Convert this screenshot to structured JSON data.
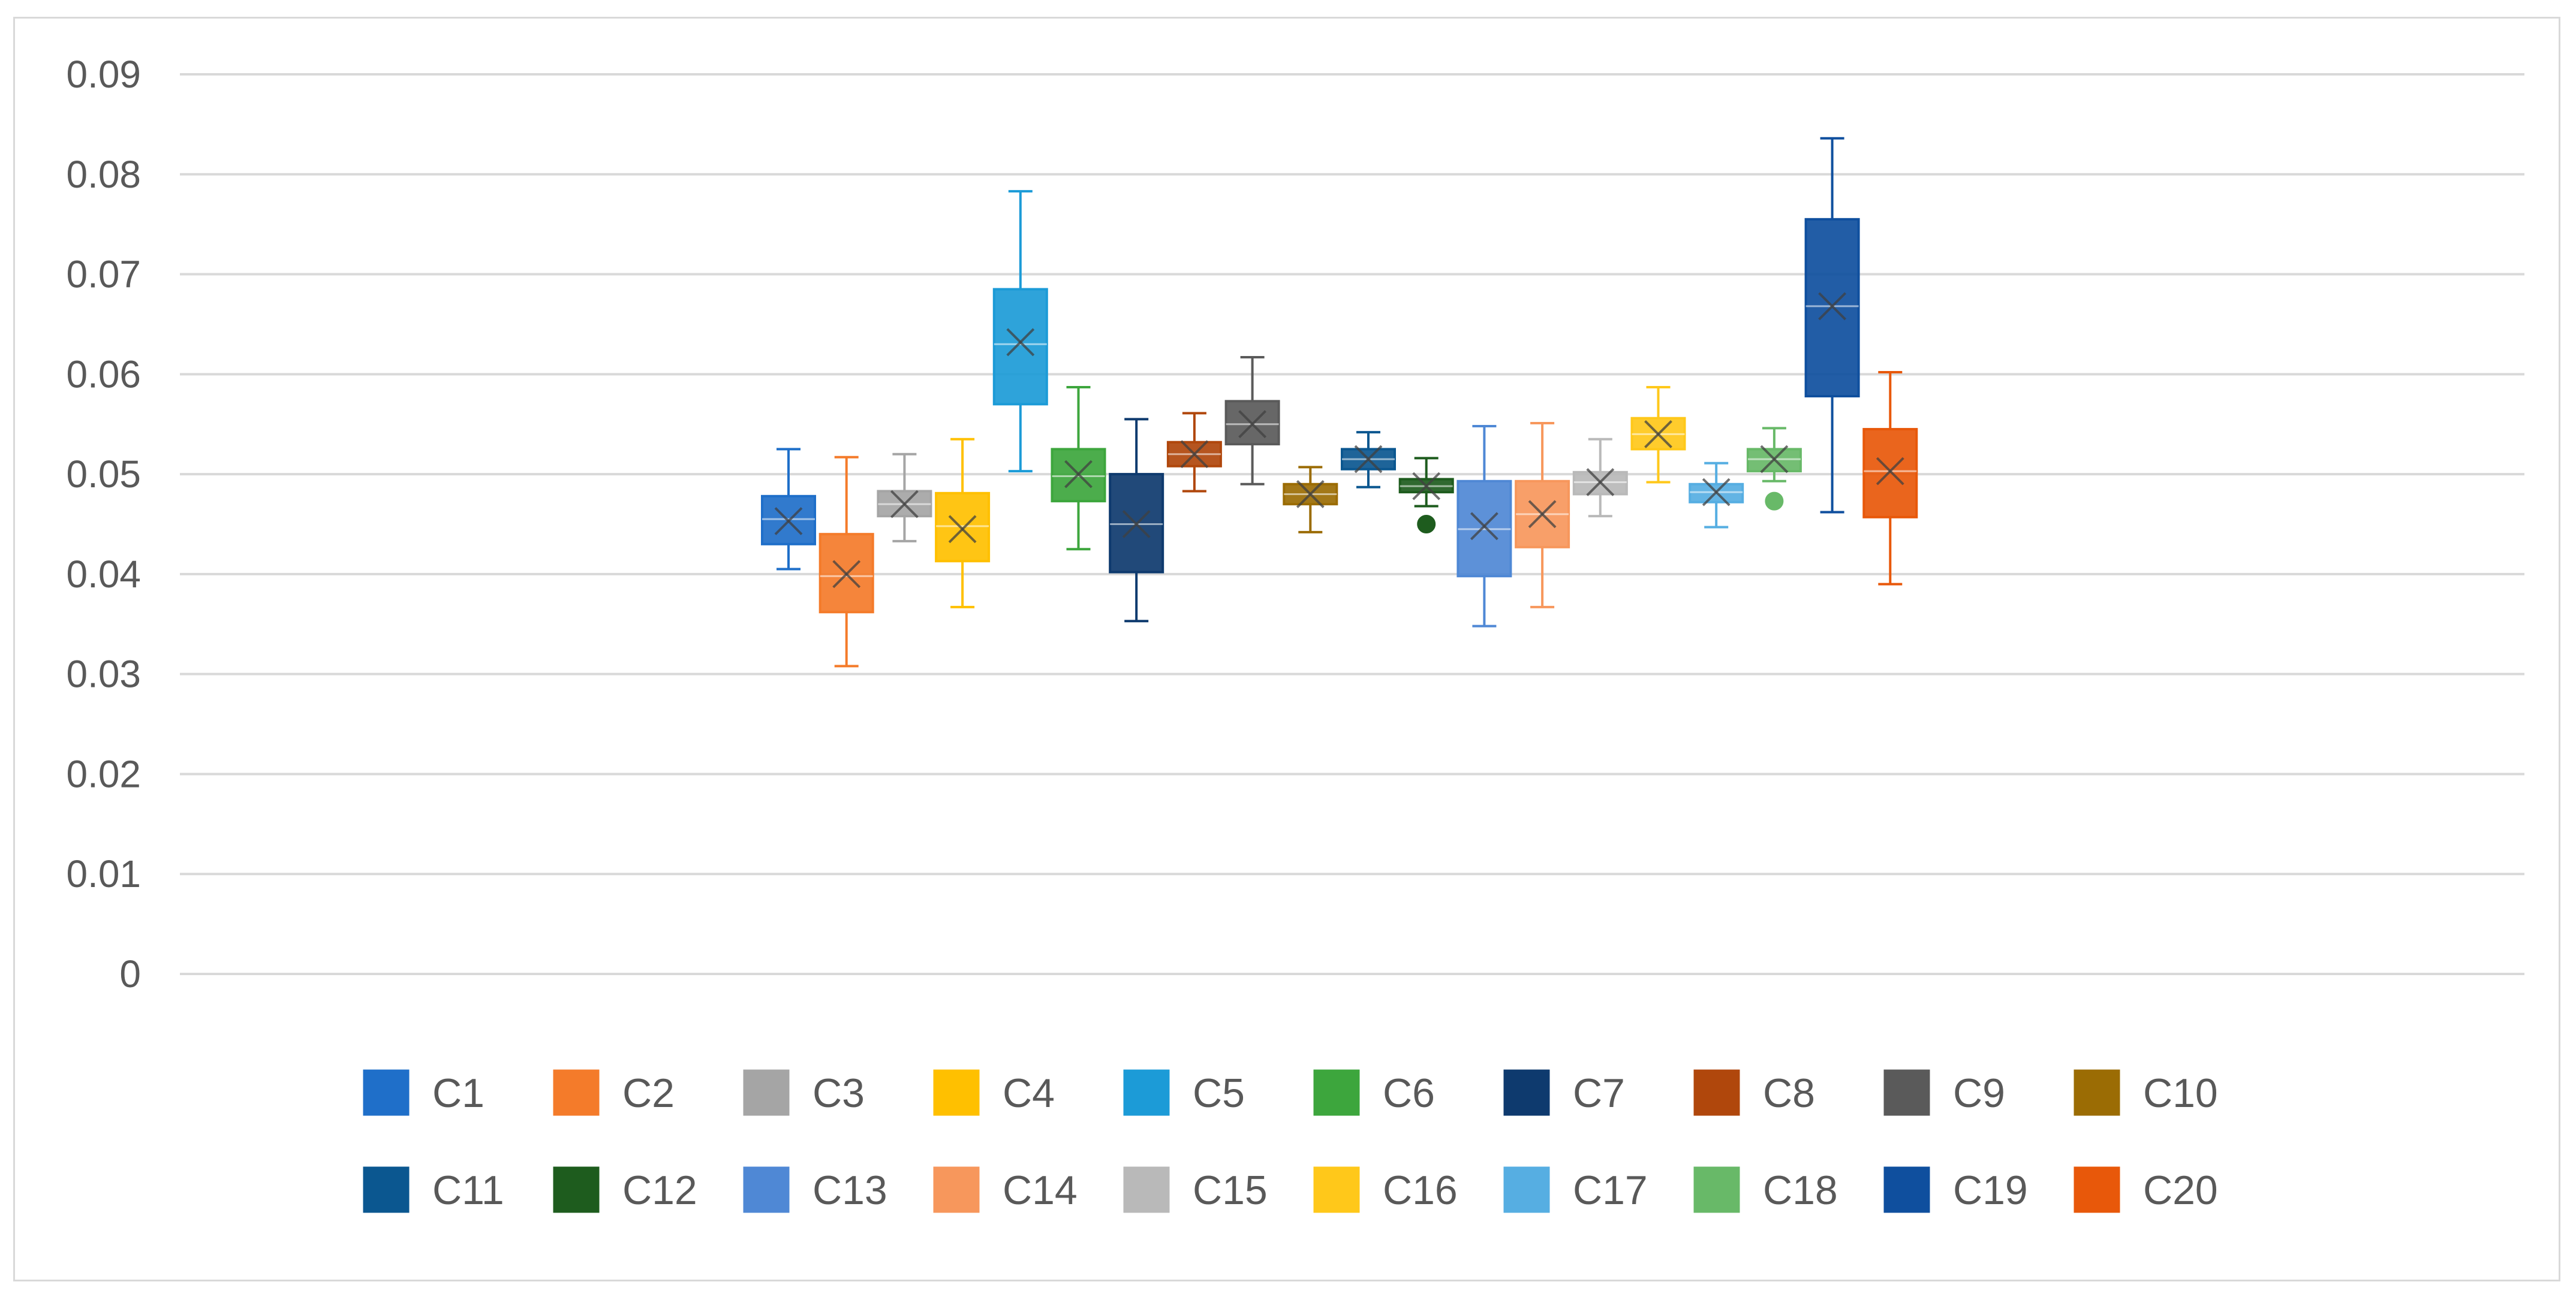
{
  "chart_data": {
    "type": "box",
    "title": "",
    "xlabel": "",
    "ylabel": "",
    "ylim": [
      0,
      0.09
    ],
    "y_ticks": [
      "0",
      "0.01",
      "0.02",
      "0.03",
      "0.04",
      "0.05",
      "0.06",
      "0.07",
      "0.08",
      "0.09"
    ],
    "grid": true,
    "legend_position": "bottom",
    "series": [
      {
        "name": "C1",
        "color": "#1f6fc9",
        "min": 0.0405,
        "q1": 0.043,
        "median": 0.0455,
        "mean": 0.0453,
        "q3": 0.0478,
        "max": 0.0525,
        "outliers": []
      },
      {
        "name": "C2",
        "color": "#f47b2a",
        "min": 0.0308,
        "q1": 0.0362,
        "median": 0.0398,
        "mean": 0.04,
        "q3": 0.044,
        "max": 0.0517,
        "outliers": []
      },
      {
        "name": "C3",
        "color": "#a5a5a5",
        "min": 0.0433,
        "q1": 0.0458,
        "median": 0.047,
        "mean": 0.047,
        "q3": 0.0483,
        "max": 0.052,
        "outliers": []
      },
      {
        "name": "C4",
        "color": "#ffc000",
        "min": 0.0367,
        "q1": 0.0413,
        "median": 0.0448,
        "mean": 0.0445,
        "q3": 0.0481,
        "max": 0.0535,
        "outliers": []
      },
      {
        "name": "C5",
        "color": "#1c9bd7",
        "min": 0.0503,
        "q1": 0.057,
        "median": 0.063,
        "mean": 0.0632,
        "q3": 0.0685,
        "max": 0.0783,
        "outliers": []
      },
      {
        "name": "C6",
        "color": "#3da63d",
        "min": 0.0425,
        "q1": 0.0473,
        "median": 0.0498,
        "mean": 0.05,
        "q3": 0.0525,
        "max": 0.0587,
        "outliers": []
      },
      {
        "name": "C7",
        "color": "#0e3a6e",
        "min": 0.0353,
        "q1": 0.0402,
        "median": 0.045,
        "mean": 0.045,
        "q3": 0.05,
        "max": 0.0555,
        "outliers": []
      },
      {
        "name": "C8",
        "color": "#b0470c",
        "min": 0.0483,
        "q1": 0.0508,
        "median": 0.052,
        "mean": 0.052,
        "q3": 0.0532,
        "max": 0.0561,
        "outliers": []
      },
      {
        "name": "C9",
        "color": "#5a5a5a",
        "min": 0.049,
        "q1": 0.053,
        "median": 0.055,
        "mean": 0.055,
        "q3": 0.0573,
        "max": 0.0617,
        "outliers": []
      },
      {
        "name": "C10",
        "color": "#9b6c04",
        "min": 0.0442,
        "q1": 0.047,
        "median": 0.048,
        "mean": 0.048,
        "q3": 0.049,
        "max": 0.0507,
        "outliers": []
      },
      {
        "name": "C11",
        "color": "#0b5790",
        "min": 0.0487,
        "q1": 0.0505,
        "median": 0.0515,
        "mean": 0.0515,
        "q3": 0.0525,
        "max": 0.0542,
        "outliers": []
      },
      {
        "name": "C12",
        "color": "#1e5c1e",
        "min": 0.0468,
        "q1": 0.0482,
        "median": 0.0488,
        "mean": 0.0488,
        "q3": 0.0495,
        "max": 0.0516,
        "outliers": [
          0.045
        ]
      },
      {
        "name": "C13",
        "color": "#4f88d5",
        "min": 0.0348,
        "q1": 0.0398,
        "median": 0.0445,
        "mean": 0.0448,
        "q3": 0.0493,
        "max": 0.0548,
        "outliers": []
      },
      {
        "name": "C14",
        "color": "#f7975c",
        "min": 0.0367,
        "q1": 0.0427,
        "median": 0.046,
        "mean": 0.046,
        "q3": 0.0493,
        "max": 0.0551,
        "outliers": []
      },
      {
        "name": "C15",
        "color": "#b9b9b9",
        "min": 0.0458,
        "q1": 0.048,
        "median": 0.0492,
        "mean": 0.0492,
        "q3": 0.0502,
        "max": 0.0535,
        "outliers": []
      },
      {
        "name": "C16",
        "color": "#ffc81a",
        "min": 0.0492,
        "q1": 0.0525,
        "median": 0.054,
        "mean": 0.054,
        "q3": 0.0556,
        "max": 0.0587,
        "outliers": []
      },
      {
        "name": "C17",
        "color": "#56aee2",
        "min": 0.0447,
        "q1": 0.0472,
        "median": 0.0482,
        "mean": 0.0482,
        "q3": 0.049,
        "max": 0.0511,
        "outliers": []
      },
      {
        "name": "C18",
        "color": "#68b968",
        "min": 0.0493,
        "q1": 0.0503,
        "median": 0.0515,
        "mean": 0.0515,
        "q3": 0.0525,
        "max": 0.0546,
        "outliers": [
          0.0473
        ]
      },
      {
        "name": "C19",
        "color": "#0f4f9e",
        "min": 0.0462,
        "q1": 0.0578,
        "median": 0.0668,
        "mean": 0.0668,
        "q3": 0.0755,
        "max": 0.0836,
        "outliers": []
      },
      {
        "name": "C20",
        "color": "#e8580a",
        "min": 0.039,
        "q1": 0.0457,
        "median": 0.0503,
        "mean": 0.0503,
        "q3": 0.0545,
        "max": 0.0602,
        "outliers": []
      }
    ]
  }
}
